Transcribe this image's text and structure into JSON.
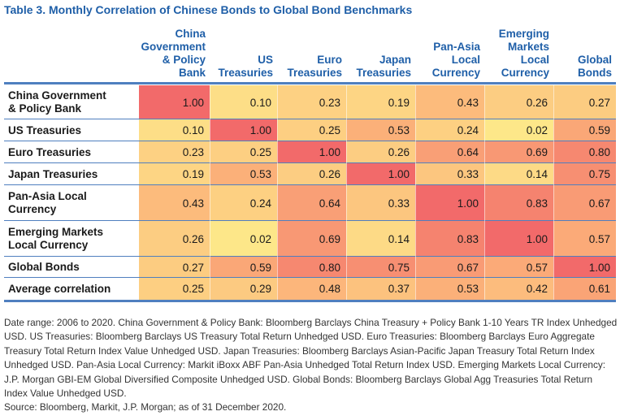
{
  "chart_data": {
    "type": "table",
    "title": "Table 3. Monthly Correlation of Chinese Bonds to Global Bond Benchmarks",
    "columns": [
      "China\nGovernment\n& Policy\nBank",
      "US\nTreasuries",
      "Euro\nTreasuries",
      "Japan\nTreasuries",
      "Pan-Asia\nLocal\nCurrency",
      "Emerging\nMarkets\nLocal\nCurrency",
      "Global\nBonds"
    ],
    "rows": [
      {
        "label": "China Government\n& Policy Bank",
        "values": [
          "1.00",
          "0.10",
          "0.23",
          "0.19",
          "0.43",
          "0.26",
          "0.27"
        ]
      },
      {
        "label": "US Treasuries",
        "values": [
          "0.10",
          "1.00",
          "0.25",
          "0.53",
          "0.24",
          "0.02",
          "0.59"
        ]
      },
      {
        "label": "Euro Treasuries",
        "values": [
          "0.23",
          "0.25",
          "1.00",
          "0.26",
          "0.64",
          "0.69",
          "0.80"
        ]
      },
      {
        "label": "Japan Treasuries",
        "values": [
          "0.19",
          "0.53",
          "0.26",
          "1.00",
          "0.33",
          "0.14",
          "0.75"
        ]
      },
      {
        "label": "Pan-Asia Local\nCurrency",
        "values": [
          "0.43",
          "0.24",
          "0.64",
          "0.33",
          "1.00",
          "0.83",
          "0.67"
        ]
      },
      {
        "label": "Emerging Markets\nLocal Currency",
        "values": [
          "0.26",
          "0.02",
          "0.69",
          "0.14",
          "0.83",
          "1.00",
          "0.57"
        ]
      },
      {
        "label": "Global Bonds",
        "values": [
          "0.27",
          "0.59",
          "0.80",
          "0.75",
          "0.67",
          "0.57",
          "1.00"
        ]
      },
      {
        "label": "Average correlation",
        "values": [
          "0.25",
          "0.29",
          "0.48",
          "0.37",
          "0.53",
          "0.42",
          "0.61"
        ]
      }
    ],
    "color_scale": {
      "low": "#fde98a",
      "mid": "#fcb47a",
      "high": "#f26a6a"
    }
  },
  "rule_color": "#4f7fbf",
  "title_color": "#1f5fa8",
  "note": "Date range: 2006 to 2020. China Government & Policy Bank: Bloomberg Barclays China Treasury + Policy Bank 1-10 Years TR Index Unhedged USD. US Treasuries: Bloomberg Barclays US Treasury Total Return Unhedged USD. Euro Treasuries: Bloomberg Barclays Euro Aggregate Treasury Total Return Index Value Unhedged USD. Japan Treasuries: Bloomberg Barclays Asian-Pacific Japan Treasury Total Return Index Unhedged USD. Pan-Asia Local Currency: Markit iBoxx ABF Pan-Asia Unhedged Total Return Index USD. Emerging Markets Local Currency: J.P. Morgan GBI-EM Global Diversified Composite Unhedged USD. Global Bonds: Bloomberg Barclays Global Agg Treasuries Total Return Index Value Unhedged USD.",
  "source": "Source: Bloomberg, Markit, J.P. Morgan; as of 31 December 2020."
}
